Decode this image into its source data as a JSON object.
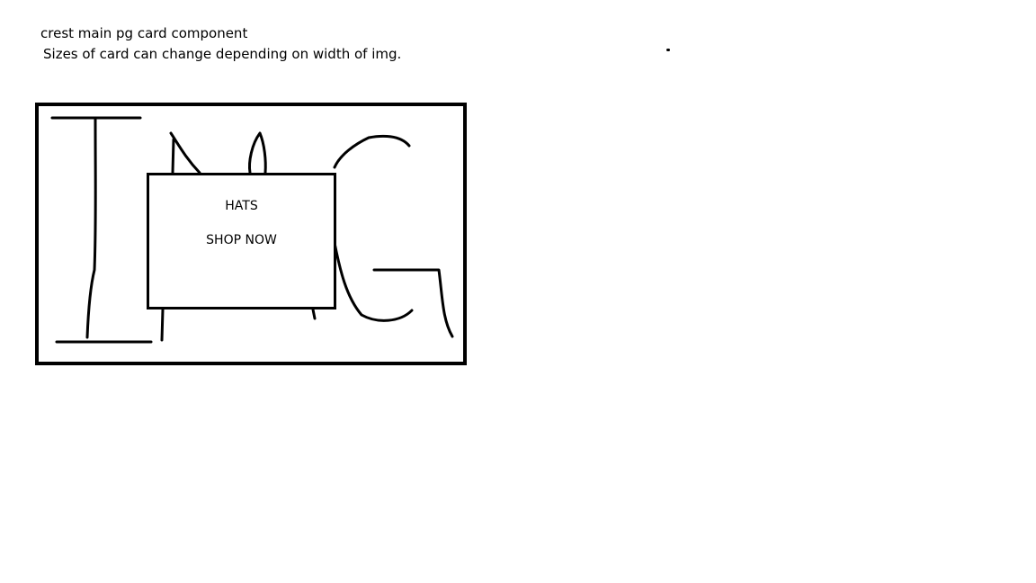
{
  "notes": {
    "title": "crest main pg card component",
    "description": "Sizes of card can change depending on width of img."
  },
  "card": {
    "image_placeholder_icon": "img-letters-sketch-icon",
    "overlay": {
      "title": "HATS",
      "cta_label": "SHOP NOW"
    }
  },
  "colors": {
    "ink": "#000000",
    "background": "#ffffff"
  }
}
